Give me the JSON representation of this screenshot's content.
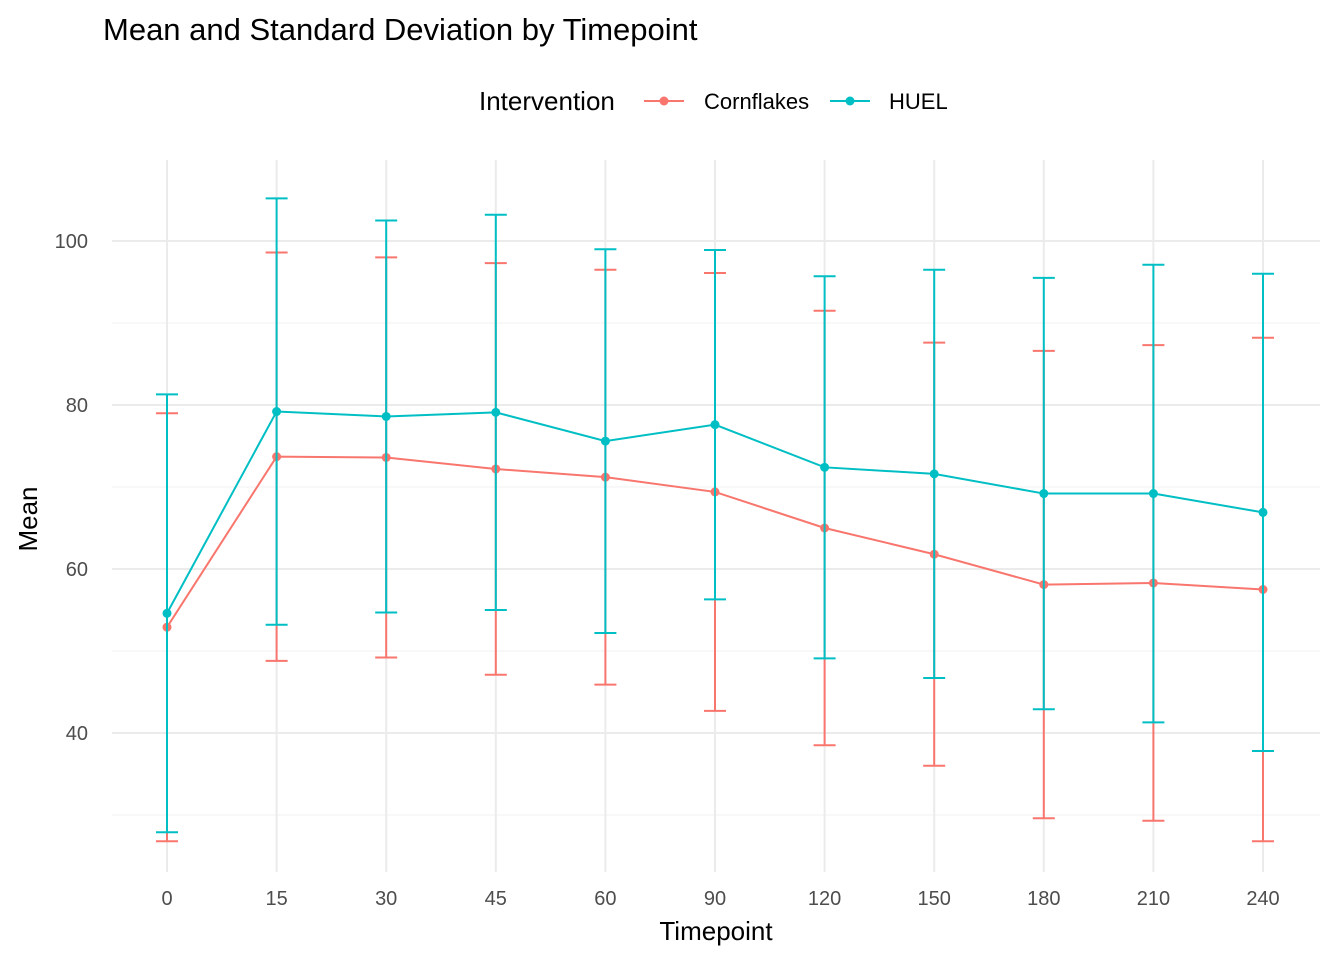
{
  "chart_data": {
    "type": "line",
    "title": "Mean and Standard Deviation by Timepoint",
    "xlabel": "Timepoint",
    "ylabel": "Mean",
    "legend_title": "Intervention",
    "legend_position": "top",
    "grid": true,
    "ylim": [
      24,
      110
    ],
    "y_ticks": [
      40,
      60,
      80,
      100
    ],
    "categories": [
      "0",
      "15",
      "30",
      "45",
      "60",
      "90",
      "120",
      "150",
      "180",
      "210",
      "240"
    ],
    "series": [
      {
        "name": "Cornflakes",
        "color": "#F8766D",
        "values": [
          52.9,
          73.7,
          73.6,
          72.2,
          71.2,
          69.4,
          65.0,
          61.8,
          58.1,
          58.3,
          57.5
        ],
        "sd": [
          26.1,
          24.9,
          24.4,
          25.1,
          25.3,
          26.7,
          26.5,
          25.8,
          28.5,
          29.0,
          30.7
        ]
      },
      {
        "name": "HUEL",
        "color": "#00BFC4",
        "values": [
          54.6,
          79.2,
          78.6,
          79.1,
          75.6,
          77.6,
          72.4,
          71.6,
          69.2,
          69.2,
          66.9
        ],
        "sd": [
          26.7,
          26.0,
          23.9,
          24.1,
          23.4,
          21.3,
          23.3,
          24.9,
          26.3,
          27.9,
          29.1
        ]
      }
    ]
  }
}
